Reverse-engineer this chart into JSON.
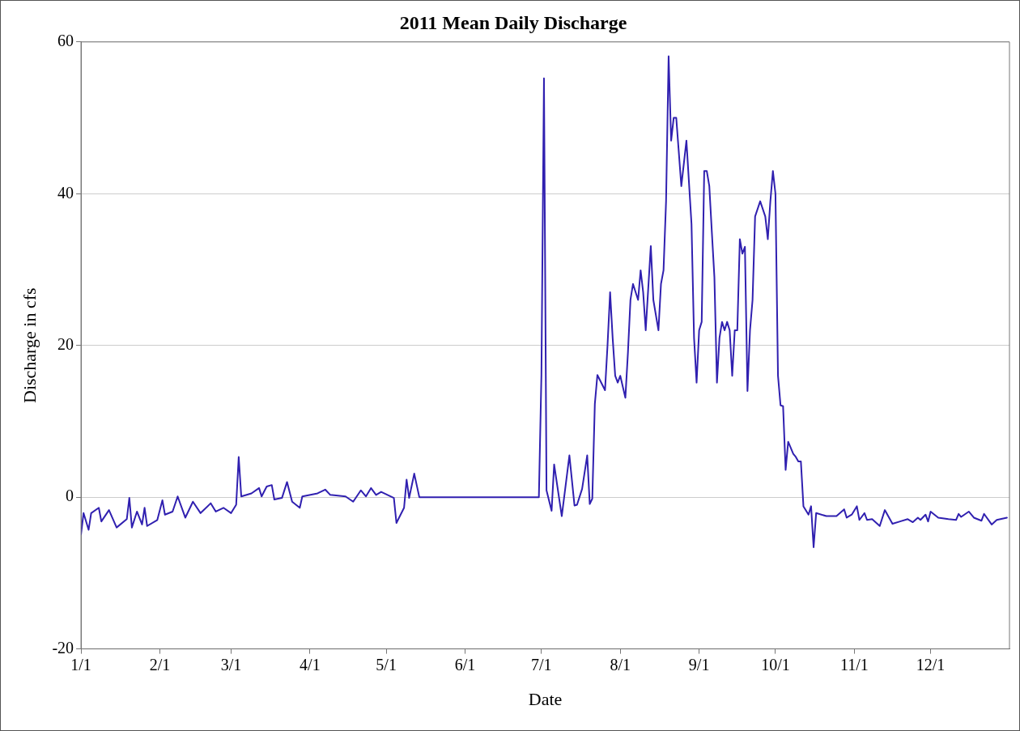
{
  "chart_data": {
    "type": "line",
    "title": "2011 Mean Daily Discharge",
    "xlabel": "Date",
    "ylabel": "Discharge in cfs",
    "xlim": [
      "2011-01-01",
      "2012-01-01"
    ],
    "xticks": [
      {
        "value": "2011-01-01",
        "label": "1/1"
      },
      {
        "value": "2011-02-01",
        "label": "2/1"
      },
      {
        "value": "2011-03-01",
        "label": "3/1"
      },
      {
        "value": "2011-04-01",
        "label": "4/1"
      },
      {
        "value": "2011-05-01",
        "label": "5/1"
      },
      {
        "value": "2011-06-01",
        "label": "6/1"
      },
      {
        "value": "2011-07-01",
        "label": "7/1"
      },
      {
        "value": "2011-08-01",
        "label": "8/1"
      },
      {
        "value": "2011-09-01",
        "label": "9/1"
      },
      {
        "value": "2011-10-01",
        "label": "10/1"
      },
      {
        "value": "2011-11-01",
        "label": "11/1"
      },
      {
        "value": "2011-12-01",
        "label": "12/1"
      }
    ],
    "ylim": [
      -20,
      60
    ],
    "yticks": [
      -20,
      0,
      20,
      40,
      60
    ],
    "grid": "y",
    "legend": false,
    "marker": "none",
    "line_style": "solid",
    "x": [
      "2011-01-01",
      "2011-01-02",
      "2011-01-04",
      "2011-01-05",
      "2011-01-08",
      "2011-01-09",
      "2011-01-12",
      "2011-01-15",
      "2011-01-19",
      "2011-01-20",
      "2011-01-21",
      "2011-01-23",
      "2011-01-25",
      "2011-01-26",
      "2011-01-27",
      "2011-01-31",
      "2011-02-02",
      "2011-02-03",
      "2011-02-06",
      "2011-02-08",
      "2011-02-11",
      "2011-02-14",
      "2011-02-17",
      "2011-02-21",
      "2011-02-23",
      "2011-02-26",
      "2011-03-01",
      "2011-03-03",
      "2011-03-04",
      "2011-03-05",
      "2011-03-09",
      "2011-03-12",
      "2011-03-13",
      "2011-03-15",
      "2011-03-17",
      "2011-03-18",
      "2011-03-21",
      "2011-03-23",
      "2011-03-25",
      "2011-03-28",
      "2011-03-29",
      "2011-04-04",
      "2011-04-07",
      "2011-04-09",
      "2011-04-15",
      "2011-04-18",
      "2011-04-21",
      "2011-04-23",
      "2011-04-25",
      "2011-04-27",
      "2011-04-29",
      "2011-05-04",
      "2011-05-05",
      "2011-05-08",
      "2011-05-09",
      "2011-05-10",
      "2011-05-12",
      "2011-05-14",
      "2011-06-30",
      "2011-07-01",
      "2011-07-02",
      "2011-07-03",
      "2011-07-05",
      "2011-07-06",
      "2011-07-09",
      "2011-07-12",
      "2011-07-14",
      "2011-07-15",
      "2011-07-17",
      "2011-07-19",
      "2011-07-20",
      "2011-07-21",
      "2011-07-22",
      "2011-07-23",
      "2011-07-26",
      "2011-07-27",
      "2011-07-28",
      "2011-07-29",
      "2011-07-30",
      "2011-07-31",
      "2011-08-01",
      "2011-08-03",
      "2011-08-04",
      "2011-08-05",
      "2011-08-06",
      "2011-08-08",
      "2011-08-09",
      "2011-08-10",
      "2011-08-11",
      "2011-08-13",
      "2011-08-14",
      "2011-08-16",
      "2011-08-17",
      "2011-08-18",
      "2011-08-19",
      "2011-08-20",
      "2011-08-21",
      "2011-08-22",
      "2011-08-23",
      "2011-08-25",
      "2011-08-27",
      "2011-08-29",
      "2011-08-30",
      "2011-08-31",
      "2011-09-01",
      "2011-09-02",
      "2011-09-03",
      "2011-09-04",
      "2011-09-05",
      "2011-09-06",
      "2011-09-07",
      "2011-09-08",
      "2011-09-09",
      "2011-09-10",
      "2011-09-11",
      "2011-09-12",
      "2011-09-13",
      "2011-09-14",
      "2011-09-15",
      "2011-09-16",
      "2011-09-17",
      "2011-09-18",
      "2011-09-19",
      "2011-09-20",
      "2011-09-21",
      "2011-09-22",
      "2011-09-23",
      "2011-09-25",
      "2011-09-27",
      "2011-09-28",
      "2011-09-29",
      "2011-09-30",
      "2011-10-01",
      "2011-10-02",
      "2011-10-03",
      "2011-10-04",
      "2011-10-05",
      "2011-10-06",
      "2011-10-08",
      "2011-10-09",
      "2011-10-10",
      "2011-10-11",
      "2011-10-12",
      "2011-10-14",
      "2011-10-15",
      "2011-10-16",
      "2011-10-17",
      "2011-10-21",
      "2011-10-25",
      "2011-10-28",
      "2011-10-29",
      "2011-10-31",
      "2011-11-02",
      "2011-11-03",
      "2011-11-05",
      "2011-11-06",
      "2011-11-08",
      "2011-11-11",
      "2011-11-13",
      "2011-11-16",
      "2011-11-19",
      "2011-11-22",
      "2011-11-24",
      "2011-11-26",
      "2011-11-27",
      "2011-11-29",
      "2011-11-30",
      "2011-12-01",
      "2011-12-04",
      "2011-12-08",
      "2011-12-11",
      "2011-12-12",
      "2011-12-13",
      "2011-12-16",
      "2011-12-18",
      "2011-12-21",
      "2011-12-22",
      "2011-12-25",
      "2011-12-27",
      "2011-12-31"
    ],
    "series": [
      {
        "color": "#3020b0",
        "values": [
          -4.9,
          -2.1,
          -4.3,
          -2.1,
          -1.4,
          -3.2,
          -1.7,
          -4.0,
          -2.9,
          -0.1,
          -4.0,
          -1.9,
          -3.6,
          -1.4,
          -3.8,
          -3.0,
          -0.4,
          -2.3,
          -1.9,
          0.1,
          -2.7,
          -0.6,
          -2.1,
          -0.8,
          -1.9,
          -1.4,
          -2.1,
          -1.0,
          5.3,
          0.1,
          0.5,
          1.2,
          0.1,
          1.4,
          1.6,
          -0.3,
          -0.1,
          2.0,
          -0.6,
          -1.4,
          0.1,
          0.5,
          1.0,
          0.3,
          0.1,
          -0.6,
          0.9,
          0.1,
          1.2,
          0.3,
          0.7,
          -0.1,
          -3.4,
          -1.4,
          2.3,
          -0.1,
          3.1,
          0,
          0,
          16.1,
          55.2,
          0.9,
          -1.8,
          4.3,
          -2.5,
          5.5,
          -1.1,
          -1.0,
          1.1,
          5.5,
          -0.9,
          -0.2,
          12.3,
          16.1,
          14.1,
          20.1,
          27.0,
          21.0,
          16.0,
          15.1,
          16.0,
          13.1,
          19.0,
          26.0,
          28.1,
          26.0,
          29.9,
          27.0,
          22.0,
          33.1,
          26.0,
          22.0,
          28.1,
          29.9,
          39.0,
          58.1,
          47,
          50,
          50,
          41,
          47,
          36,
          21,
          15.1,
          22,
          23.1,
          43,
          43,
          41,
          34.9,
          29,
          15.1,
          21,
          23.1,
          22,
          23.1,
          22,
          16,
          22,
          22,
          34,
          32.1,
          33,
          14,
          22,
          26,
          37,
          39,
          37,
          34,
          39,
          43,
          40,
          16,
          12.1,
          12,
          3.6,
          7.3,
          5.7,
          5.3,
          4.7,
          4.7,
          -1.2,
          -2.3,
          -1.2,
          -6.6,
          -2.1,
          -2.5,
          -2.5,
          -1.6,
          -2.7,
          -2.3,
          -1.2,
          -3.0,
          -2.1,
          -3.0,
          -2.9,
          -3.8,
          -1.7,
          -3.5,
          -3.2,
          -2.9,
          -3.3,
          -2.7,
          -3.0,
          -2.3,
          -3.2,
          -1.9,
          -2.7,
          -2.9,
          -3.0,
          -2.2,
          -2.6,
          -1.9,
          -2.7,
          -3.1,
          -2.2,
          -3.6,
          -3.0,
          -2.7
        ]
      }
    ]
  }
}
